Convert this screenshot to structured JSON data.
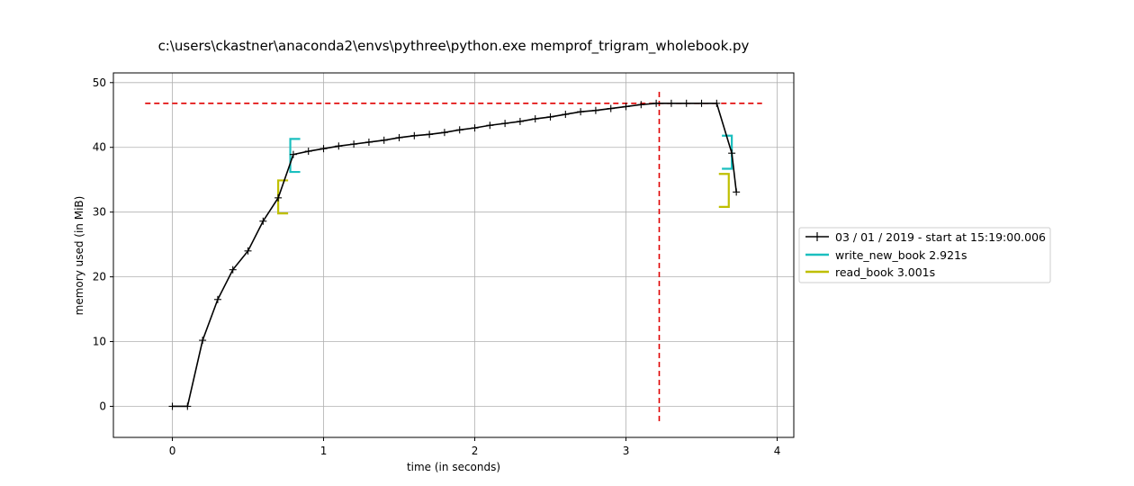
{
  "chart_data": {
    "type": "line",
    "title": "c:\\users\\ckastner\\anaconda2\\envs\\pythree\\python.exe memprof_trigram_wholebook.py",
    "xlabel": "time (in seconds)",
    "ylabel": "memory used (in MiB)",
    "xlim": [
      -0.39,
      4.11
    ],
    "ylim": [
      -4.8,
      51.5
    ],
    "x_ticks": [
      0,
      1,
      2,
      3,
      4
    ],
    "y_ticks": [
      0,
      10,
      20,
      30,
      40,
      50
    ],
    "grid": true,
    "legend_placement": "right-outside",
    "series": [
      {
        "name": "03 / 01 / 2019 - start at 15:19:00.006",
        "color": "#000000",
        "marker": "plus",
        "x": [
          0.0,
          0.1,
          0.2,
          0.3,
          0.4,
          0.5,
          0.6,
          0.7,
          0.8,
          0.9,
          1.0,
          1.1,
          1.2,
          1.3,
          1.4,
          1.5,
          1.6,
          1.7,
          1.8,
          1.9,
          2.0,
          2.1,
          2.2,
          2.3,
          2.4,
          2.5,
          2.6,
          2.7,
          2.8,
          2.9,
          3.0,
          3.1,
          3.2,
          3.3,
          3.4,
          3.5,
          3.6,
          3.7,
          3.73
        ],
        "y": [
          0.0,
          0.0,
          10.2,
          16.5,
          21.1,
          24.0,
          28.6,
          32.2,
          38.9,
          39.4,
          39.8,
          40.2,
          40.5,
          40.8,
          41.1,
          41.5,
          41.8,
          42.0,
          42.3,
          42.7,
          43.0,
          43.4,
          43.7,
          44.0,
          44.4,
          44.7,
          45.1,
          45.5,
          45.7,
          46.0,
          46.3,
          46.6,
          46.8,
          46.8,
          46.8,
          46.8,
          46.8,
          39.1,
          33.1
        ]
      }
    ],
    "function_brackets": [
      {
        "name": "write_new_book 2.921s",
        "color": "#1bbfbf",
        "spans": [
          {
            "x": 0.78,
            "y0": 36.2,
            "y1": 41.3,
            "side": "left"
          },
          {
            "x": 3.7,
            "y0": 36.7,
            "y1": 41.8,
            "side": "right"
          }
        ]
      },
      {
        "name": "read_book 3.001s",
        "color": "#bfbf00",
        "spans": [
          {
            "x": 0.7,
            "y0": 29.8,
            "y1": 34.9,
            "side": "left"
          },
          {
            "x": 3.68,
            "y0": 30.8,
            "y1": 35.9,
            "side": "right"
          }
        ]
      }
    ],
    "max_lines": {
      "color": "#e00000",
      "horizontal": {
        "y": 46.8,
        "x0": -0.18,
        "x1": 3.9
      },
      "vertical": {
        "x": 3.22,
        "y0": -2.3,
        "y1": 49.1
      }
    }
  }
}
